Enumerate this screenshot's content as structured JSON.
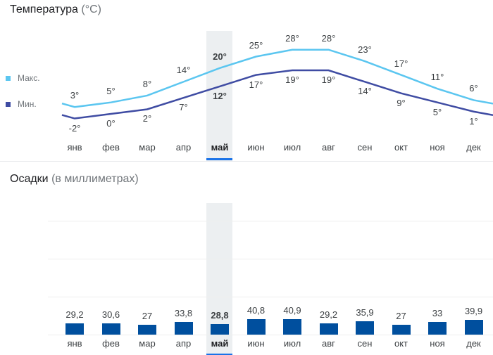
{
  "temperature": {
    "title": "Температура",
    "unit": "(°C)",
    "legend_max": "Макс.",
    "legend_min": "Мин.",
    "max_color": "#5bc6f0",
    "min_color": "#3f4ca3",
    "max_labels": [
      "3°",
      "5°",
      "8°",
      "14°",
      "20°",
      "25°",
      "28°",
      "28°",
      "23°",
      "17°",
      "11°",
      "6°"
    ],
    "min_labels": [
      "-2°",
      "0°",
      "2°",
      "7°",
      "12°",
      "17°",
      "19°",
      "19°",
      "14°",
      "9°",
      "5°",
      "1°"
    ]
  },
  "precipitation": {
    "title": "Осадки",
    "unit": "(в миллиметрах)",
    "bar_color": "#004f9e",
    "labels": [
      "29,2",
      "30,6",
      "27",
      "33,8",
      "28,8",
      "40,8",
      "40,9",
      "29,2",
      "35,9",
      "27",
      "33",
      "39,9"
    ]
  },
  "months": [
    "янв",
    "фев",
    "мар",
    "апр",
    "май",
    "июн",
    "июл",
    "авг",
    "сен",
    "окт",
    "ноя",
    "дек"
  ],
  "selected_month": "май",
  "chart_data": [
    {
      "type": "line",
      "title": "Температура (°C)",
      "categories": [
        "янв",
        "фев",
        "мар",
        "апр",
        "май",
        "июн",
        "июл",
        "авг",
        "сен",
        "окт",
        "ноя",
        "дек"
      ],
      "series": [
        {
          "name": "Макс.",
          "values": [
            3,
            5,
            8,
            14,
            20,
            25,
            28,
            28,
            23,
            17,
            11,
            6
          ]
        },
        {
          "name": "Мин.",
          "values": [
            -2,
            0,
            2,
            7,
            12,
            17,
            19,
            19,
            14,
            9,
            5,
            1
          ]
        }
      ],
      "grid": false,
      "legend": "left"
    },
    {
      "type": "bar",
      "title": "Осадки (в миллиметрах)",
      "categories": [
        "янв",
        "фев",
        "мар",
        "апр",
        "май",
        "июн",
        "июл",
        "авг",
        "сен",
        "окт",
        "ноя",
        "дек"
      ],
      "values": [
        29.2,
        30.6,
        27,
        33.8,
        28.8,
        40.8,
        40.9,
        29.2,
        35.9,
        27,
        33,
        39.9
      ],
      "grid": true
    }
  ]
}
